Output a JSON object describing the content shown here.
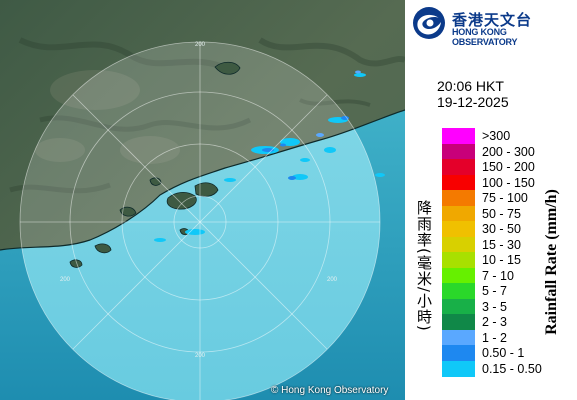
{
  "map": {
    "credit": "© Hong Kong Observatory",
    "ring_labels": [
      "200",
      "200",
      "200",
      "200"
    ]
  },
  "logo": {
    "name_cn": "香港天文台",
    "name_en": "HONG KONG OBSERVATORY"
  },
  "timestamp": {
    "time": "20:06 HKT",
    "date": "19-12-2025"
  },
  "legend": {
    "title_cn": "降雨率(毫米/小時)",
    "title_en": "Rainfall Rate (mm/h)",
    "items": [
      {
        "label": ">300",
        "color": "#ff00ff"
      },
      {
        "label": "200 - 300",
        "color": "#c8007a"
      },
      {
        "label": "150 - 200",
        "color": "#e4002a"
      },
      {
        "label": "100 - 150",
        "color": "#f80000"
      },
      {
        "label": "75 - 100",
        "color": "#f47a00"
      },
      {
        "label": "50 - 75",
        "color": "#f0a800"
      },
      {
        "label": "30 - 50",
        "color": "#f0c000"
      },
      {
        "label": "15 - 30",
        "color": "#d8d000"
      },
      {
        "label": "10 - 15",
        "color": "#a8e000"
      },
      {
        "label": "7 - 10",
        "color": "#66f000"
      },
      {
        "label": "5 - 7",
        "color": "#2ad82a"
      },
      {
        "label": "3 - 5",
        "color": "#18b048"
      },
      {
        "label": "2 - 3",
        "color": "#108848"
      },
      {
        "label": "1 - 2",
        "color": "#5aa8ff"
      },
      {
        "label": "0.50 - 1",
        "color": "#1e88f0"
      },
      {
        "label": "0.15 - 0.50",
        "color": "#10c8f8"
      }
    ]
  }
}
